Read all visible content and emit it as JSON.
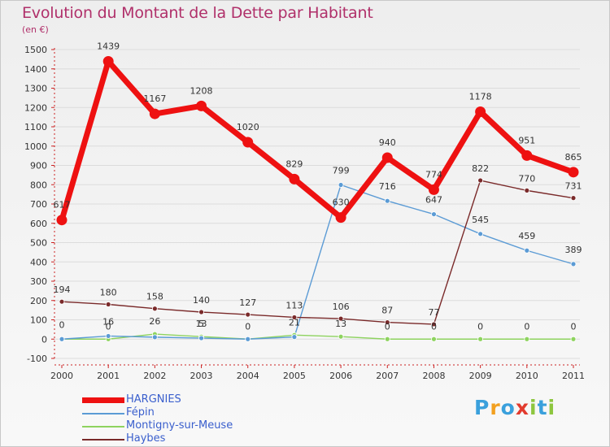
{
  "header": {
    "title": "Evolution du Montant de la Dette par Habitant",
    "subtitle": "(en €)"
  },
  "chart_data": {
    "type": "line",
    "title": "Evolution du Montant de la Dette par Habitant",
    "ylabel": "(en €)",
    "xlabel": "",
    "x": [
      "2000",
      "2001",
      "2002",
      "2003",
      "2004",
      "2005",
      "2006",
      "2007",
      "2008",
      "2009",
      "2010",
      "2011"
    ],
    "ylim": [
      -100,
      1500
    ],
    "yticks": [
      -100,
      0,
      100,
      200,
      300,
      400,
      500,
      600,
      700,
      800,
      900,
      1000,
      1100,
      1200,
      1300,
      1400,
      1500
    ],
    "grid": "horizontal",
    "legend_position": "bottom-left",
    "series": [
      {
        "name": "HARGNIES",
        "color": "#ee1111",
        "values": [
          617,
          1439,
          1167,
          1208,
          1020,
          829,
          630,
          940,
          774,
          1178,
          951,
          865
        ]
      },
      {
        "name": "Fépin",
        "color": "#5b9bd5",
        "values": [
          0,
          16,
          10,
          5,
          0,
          11,
          799,
          716,
          647,
          545,
          459,
          389
        ]
      },
      {
        "name": "Montigny-sur-Meuse",
        "color": "#8ed35f",
        "values": [
          0,
          0,
          26,
          13,
          0,
          21,
          13,
          0,
          0,
          0,
          0,
          0
        ]
      },
      {
        "name": "Haybes",
        "color": "#7a2a2a",
        "values": [
          194,
          180,
          158,
          140,
          127,
          113,
          106,
          87,
          77,
          822,
          770,
          731
        ]
      }
    ],
    "data_labels": [
      {
        "series": "HARGNIES",
        "labels": [
          "617",
          "1439",
          "1167",
          "1208",
          "1020",
          "829",
          "630",
          "940",
          "774",
          "1178",
          "951",
          "865"
        ]
      },
      {
        "series": "Fépin",
        "labels": [
          "0",
          "16",
          "",
          "5",
          "",
          "",
          "799",
          "716",
          "647",
          "545",
          "459",
          "389"
        ]
      },
      {
        "series": "Montigny-sur-Meuse",
        "labels": [
          "",
          "0",
          "26",
          "13",
          "0",
          "21",
          "13",
          "0",
          "0",
          "0",
          "0",
          "0"
        ]
      },
      {
        "series": "Haybes",
        "labels": [
          "194",
          "180",
          "158",
          "140",
          "127",
          "113",
          "106",
          "87",
          "77",
          "822",
          "770",
          "731"
        ]
      }
    ]
  },
  "legend": {
    "items": [
      "HARGNIES",
      "Fépin",
      "Montigny-sur-Meuse",
      "Haybes"
    ]
  },
  "brand": {
    "letters": [
      "P",
      "r",
      "o",
      "x",
      "i",
      "t",
      "i"
    ],
    "colors": [
      "#3aa0dc",
      "#f2a020",
      "#3aa0dc",
      "#e23b2e",
      "#8dc63f",
      "#3aa0dc",
      "#8dc63f"
    ]
  }
}
